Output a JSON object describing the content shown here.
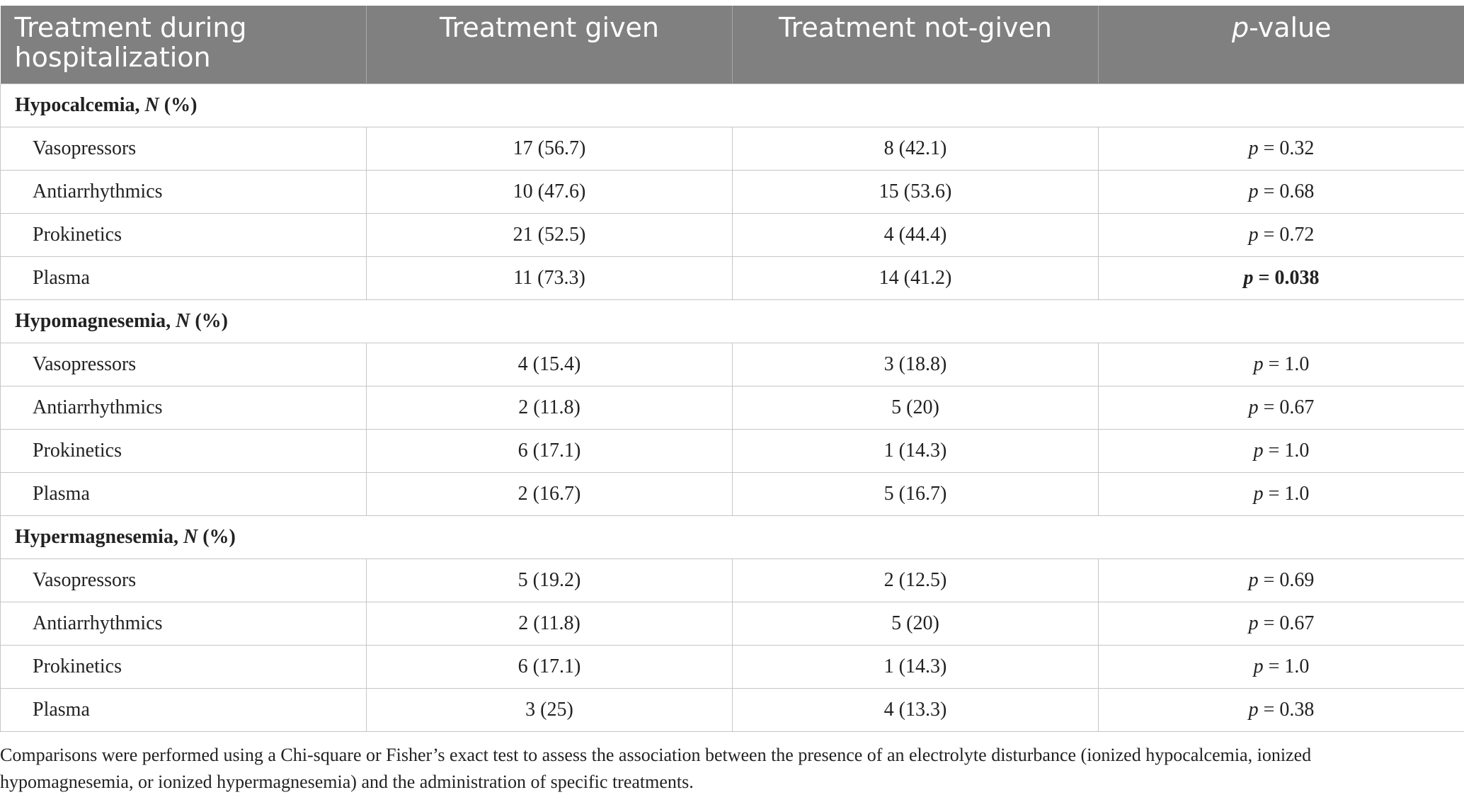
{
  "table": {
    "headers": [
      "Treatment during hospitalization",
      "Treatment given",
      "Treatment not-given",
      "-value"
    ],
    "p_symbol": "p",
    "sections": [
      {
        "title": "Hypocalcemia, ",
        "n_symbol": "N",
        "title_suffix": " (%)",
        "rows": [
          {
            "label": "Vasopressors",
            "given": "17 (56.7)",
            "not_given": "8 (42.1)",
            "p_value": " = 0.32",
            "bold": false
          },
          {
            "label": "Antiarrhythmics",
            "given": "10 (47.6)",
            "not_given": "15 (53.6)",
            "p_value": " = 0.68",
            "bold": false
          },
          {
            "label": "Prokinetics",
            "given": "21 (52.5)",
            "not_given": "4 (44.4)",
            "p_value": " = 0.72",
            "bold": false
          },
          {
            "label": "Plasma",
            "given": "11 (73.3)",
            "not_given": "14 (41.2)",
            "p_value": " = 0.038",
            "bold": true
          }
        ]
      },
      {
        "title": "Hypomagnesemia, ",
        "n_symbol": "N",
        "title_suffix": " (%)",
        "rows": [
          {
            "label": "Vasopressors",
            "given": "4 (15.4)",
            "not_given": "3 (18.8)",
            "p_value": " = 1.0",
            "bold": false
          },
          {
            "label": "Antiarrhythmics",
            "given": "2 (11.8)",
            "not_given": "5 (20)",
            "p_value": " = 0.67",
            "bold": false
          },
          {
            "label": "Prokinetics",
            "given": "6 (17.1)",
            "not_given": "1 (14.3)",
            "p_value": " = 1.0",
            "bold": false
          },
          {
            "label": "Plasma",
            "given": "2 (16.7)",
            "not_given": "5 (16.7)",
            "p_value": " = 1.0",
            "bold": false
          }
        ]
      },
      {
        "title": "Hypermagnesemia, ",
        "n_symbol": "N",
        "title_suffix": " (%)",
        "rows": [
          {
            "label": "Vasopressors",
            "given": "5 (19.2)",
            "not_given": "2 (12.5)",
            "p_value": " = 0.69",
            "bold": false
          },
          {
            "label": "Antiarrhythmics",
            "given": "2 (11.8)",
            "not_given": "5 (20)",
            "p_value": " = 0.67",
            "bold": false
          },
          {
            "label": "Prokinetics",
            "given": "6 (17.1)",
            "not_given": "1 (14.3)",
            "p_value": " = 1.0",
            "bold": false
          },
          {
            "label": "Plasma",
            "given": "3 (25)",
            "not_given": "4 (13.3)",
            "p_value": " = 0.38",
            "bold": false
          }
        ]
      }
    ]
  },
  "footnote": "Comparisons were performed using a Chi-square or Fisher’s exact test to assess the association between the presence of an electrolyte disturbance (ionized hypocalcemia, ionized hypomagnesemia, or ionized hypermagnesemia) and the administration of specific treatments."
}
